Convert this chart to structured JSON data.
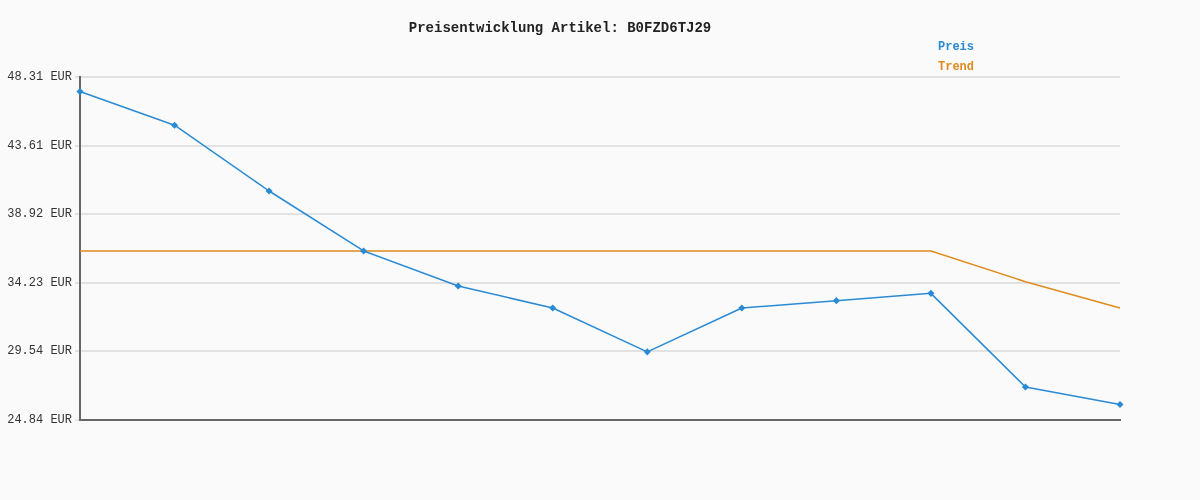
{
  "chart_data": {
    "type": "line",
    "title": "Preisentwicklung Artikel: B0FZD6TJ29",
    "categories": [
      null,
      null,
      null,
      null,
      null,
      null,
      null,
      null,
      null,
      null,
      null,
      null
    ],
    "series": [
      {
        "name": "Preis",
        "color": "#2a8ad4",
        "marker": "diamond",
        "values": [
          47.3,
          45.0,
          40.5,
          36.4,
          34.0,
          32.5,
          29.5,
          32.5,
          33.0,
          33.5,
          27.1,
          25.9
        ]
      },
      {
        "name": "Trend",
        "color": "#e08a20",
        "marker": "none",
        "values": [
          36.4,
          36.4,
          36.4,
          36.4,
          36.4,
          36.4,
          36.4,
          36.4,
          36.4,
          36.4,
          34.3,
          32.5
        ]
      }
    ],
    "ylim": [
      24.84,
      48.31
    ],
    "yticks": [
      {
        "value": 24.84,
        "label": "24.84 EUR"
      },
      {
        "value": 29.54,
        "label": "29.54 EUR"
      },
      {
        "value": 34.23,
        "label": "34.23 EUR"
      },
      {
        "value": 38.92,
        "label": "38.92 EUR"
      },
      {
        "value": 43.61,
        "label": "43.61 EUR"
      },
      {
        "value": 48.31,
        "label": "48.31 EUR"
      }
    ],
    "grid": "y",
    "legend": "top right",
    "line_style": "solid"
  }
}
